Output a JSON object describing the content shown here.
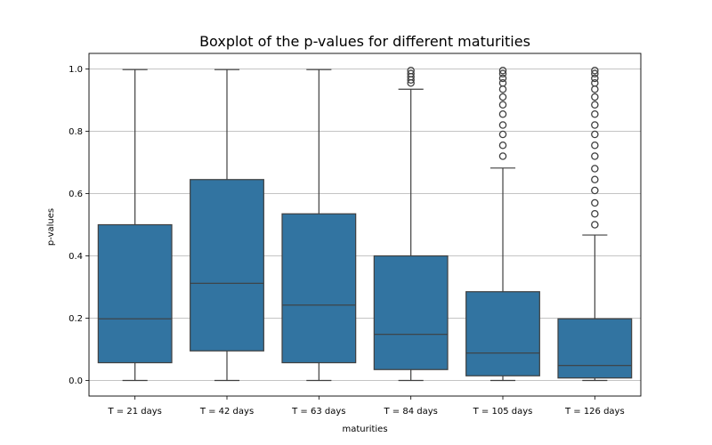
{
  "chart_data": {
    "type": "boxplot",
    "title": "Boxplot of the p-values for different maturities",
    "xlabel": "maturities",
    "ylabel": "p-values",
    "ylim": [
      -0.05,
      1.05
    ],
    "yticks": [
      0.0,
      0.2,
      0.4,
      0.6,
      0.8,
      1.0
    ],
    "ytick_labels": [
      "0.0",
      "0.2",
      "0.4",
      "0.6",
      "0.8",
      "1.0"
    ],
    "grid": true,
    "box_color": "#3274a1",
    "categories": [
      "T = 21 days",
      "T = 42 days",
      "T = 63 days",
      "T = 84 days",
      "T = 105 days",
      "T = 126 days"
    ],
    "boxes": [
      {
        "whisker_low": 0.0,
        "q1": 0.057,
        "median": 0.198,
        "q3": 0.5,
        "whisker_high": 0.998,
        "outliers": []
      },
      {
        "whisker_low": 0.0,
        "q1": 0.095,
        "median": 0.312,
        "q3": 0.645,
        "whisker_high": 0.998,
        "outliers": []
      },
      {
        "whisker_low": 0.0,
        "q1": 0.057,
        "median": 0.242,
        "q3": 0.535,
        "whisker_high": 0.998,
        "outliers": []
      },
      {
        "whisker_low": 0.0,
        "q1": 0.035,
        "median": 0.148,
        "q3": 0.4,
        "whisker_high": 0.935,
        "outliers": [
          0.955,
          0.965,
          0.975,
          0.985,
          0.995
        ]
      },
      {
        "whisker_low": 0.0,
        "q1": 0.015,
        "median": 0.088,
        "q3": 0.285,
        "whisker_high": 0.682,
        "outliers": [
          0.72,
          0.755,
          0.79,
          0.82,
          0.855,
          0.885,
          0.91,
          0.935,
          0.955,
          0.97,
          0.985,
          0.995
        ]
      },
      {
        "whisker_low": 0.0,
        "q1": 0.008,
        "median": 0.048,
        "q3": 0.198,
        "whisker_high": 0.467,
        "outliers": [
          0.5,
          0.535,
          0.57,
          0.61,
          0.645,
          0.68,
          0.72,
          0.755,
          0.79,
          0.82,
          0.855,
          0.885,
          0.91,
          0.935,
          0.955,
          0.97,
          0.985,
          0.995
        ]
      }
    ]
  }
}
